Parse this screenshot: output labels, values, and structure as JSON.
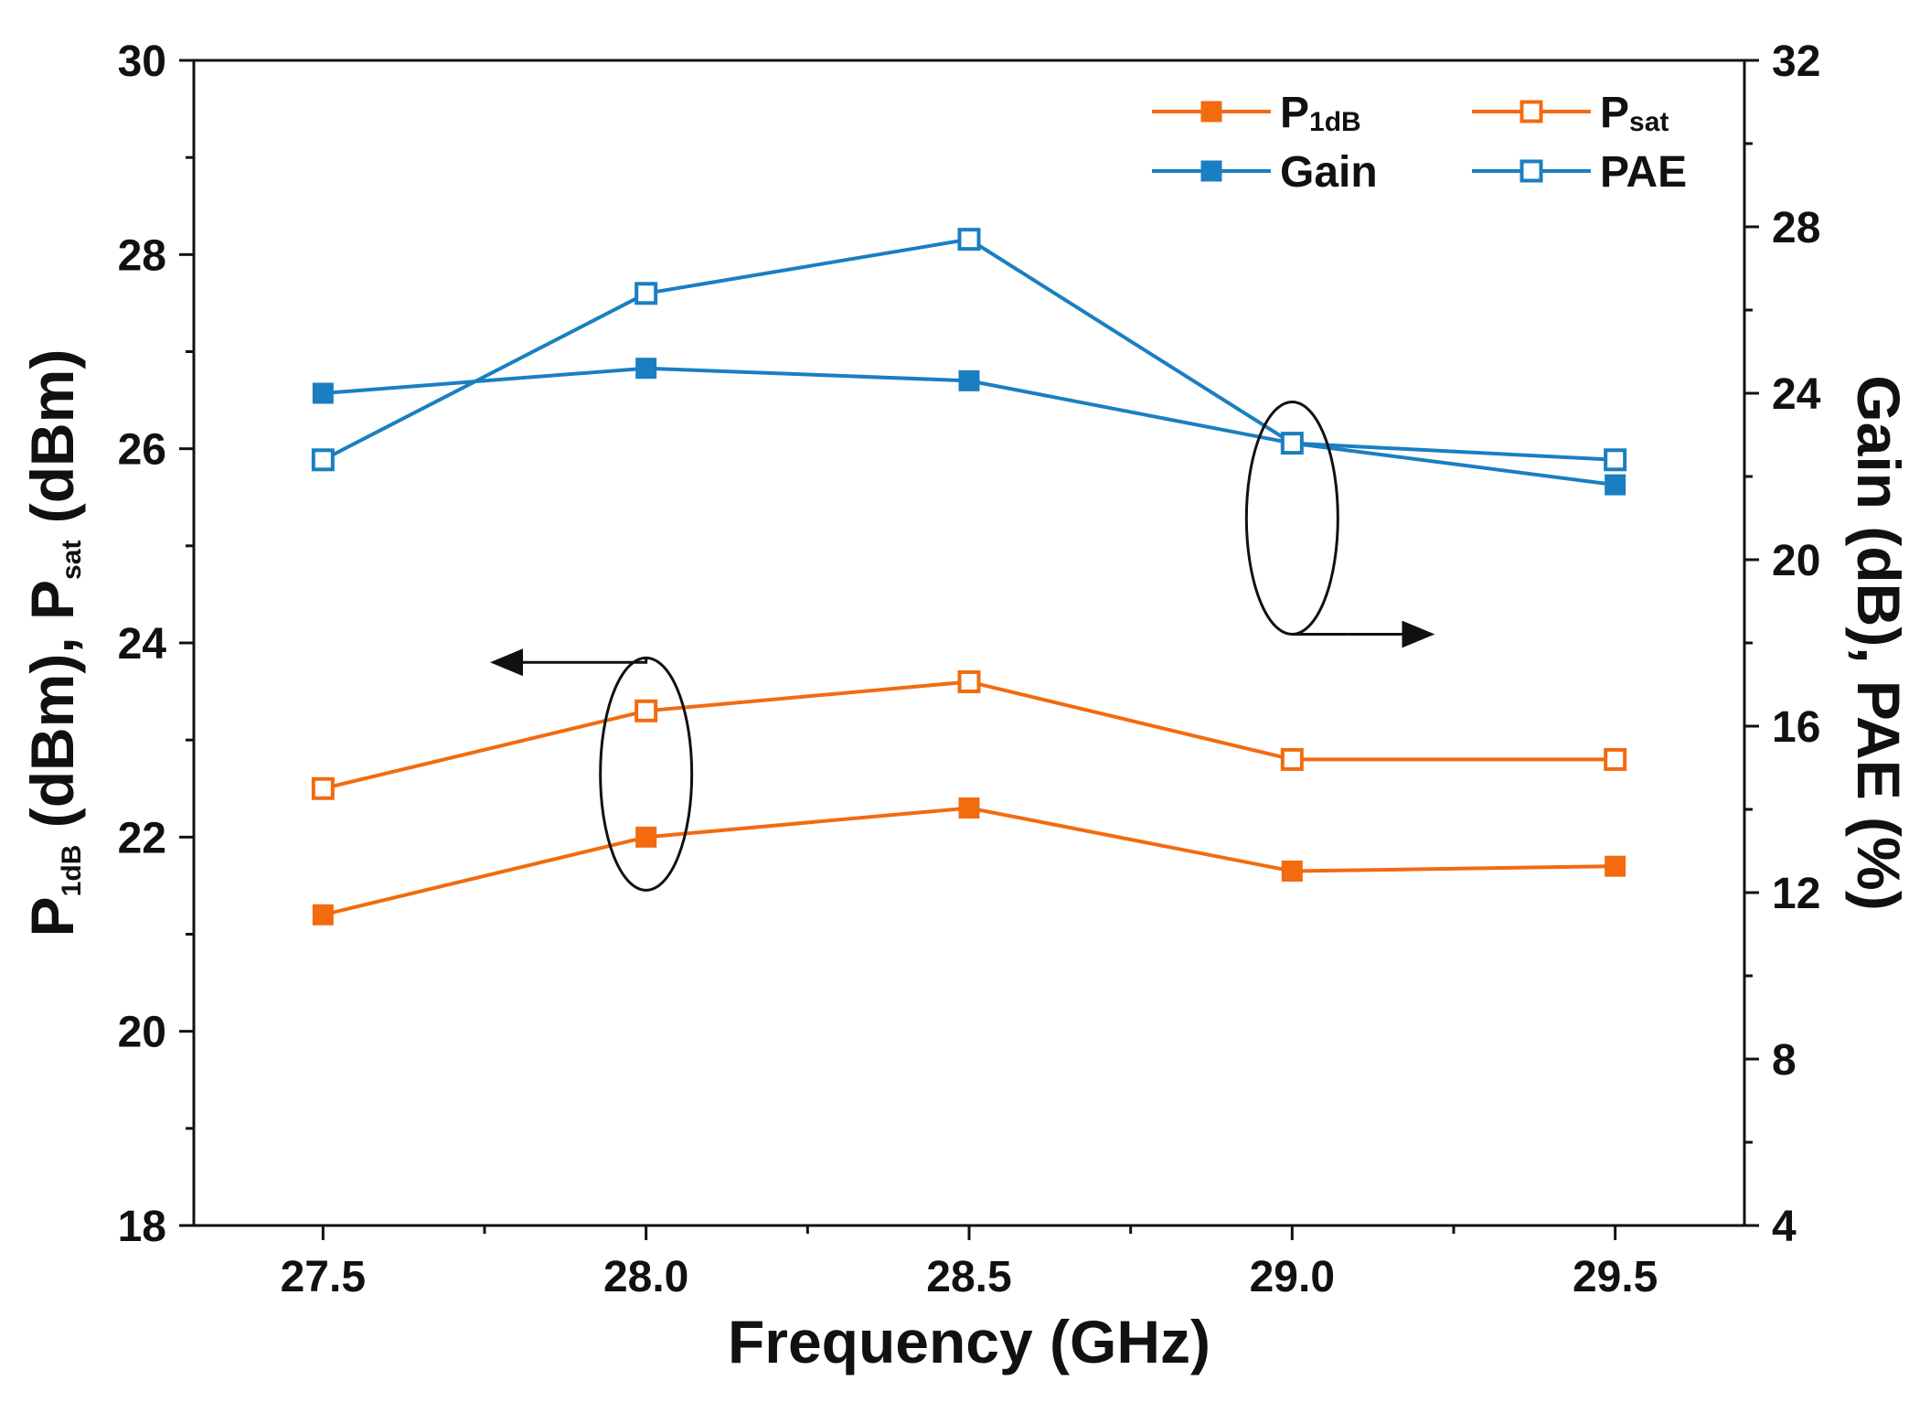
{
  "chart_data": {
    "type": "line",
    "x": [
      27.5,
      28.0,
      28.5,
      29.0,
      29.5
    ],
    "xlim": [
      27.3,
      29.7
    ],
    "x_ticks": [
      "27.5",
      "28.0",
      "28.5",
      "29.0",
      "29.5"
    ],
    "xlabel": "Frequency (GHz)",
    "y_left": {
      "label_parts": [
        "P",
        "1dB",
        " (dBm), P",
        "sat",
        " (dBm)"
      ],
      "lim": [
        18,
        30
      ],
      "ticks": [
        "18",
        "20",
        "22",
        "24",
        "26",
        "28",
        "30"
      ]
    },
    "y_right": {
      "label": "Gain (dB), PAE (%)",
      "lim": [
        4,
        32
      ],
      "ticks": [
        "4",
        "8",
        "12",
        "16",
        "20",
        "24",
        "28",
        "32"
      ]
    },
    "series": [
      {
        "key": "p1db",
        "name": "P",
        "name_sub": "1dB",
        "axis": "left",
        "marker": "filled",
        "color": "#f26b0f",
        "values": [
          21.2,
          22.0,
          22.3,
          21.65,
          21.7
        ]
      },
      {
        "key": "psat",
        "name": "P",
        "name_sub": "sat",
        "axis": "left",
        "marker": "open",
        "color": "#f26b0f",
        "values": [
          22.5,
          23.3,
          23.6,
          22.8,
          22.8
        ]
      },
      {
        "key": "gain",
        "name": "Gain",
        "name_sub": "",
        "axis": "right",
        "marker": "filled",
        "color": "#1a7fc1",
        "values": [
          24.0,
          24.6,
          24.3,
          22.8,
          21.8
        ]
      },
      {
        "key": "pae",
        "name": "PAE",
        "name_sub": "",
        "axis": "right",
        "marker": "open",
        "color": "#1a7fc1",
        "values": [
          22.4,
          26.4,
          27.7,
          22.8,
          22.4
        ]
      }
    ],
    "legend": "top-right",
    "annotations": [
      {
        "name": "left-axis-indicator",
        "target": "P1dB and Psat",
        "points_to": "left axis"
      },
      {
        "name": "right-axis-indicator",
        "target": "Gain and PAE",
        "points_to": "right axis"
      }
    ]
  }
}
